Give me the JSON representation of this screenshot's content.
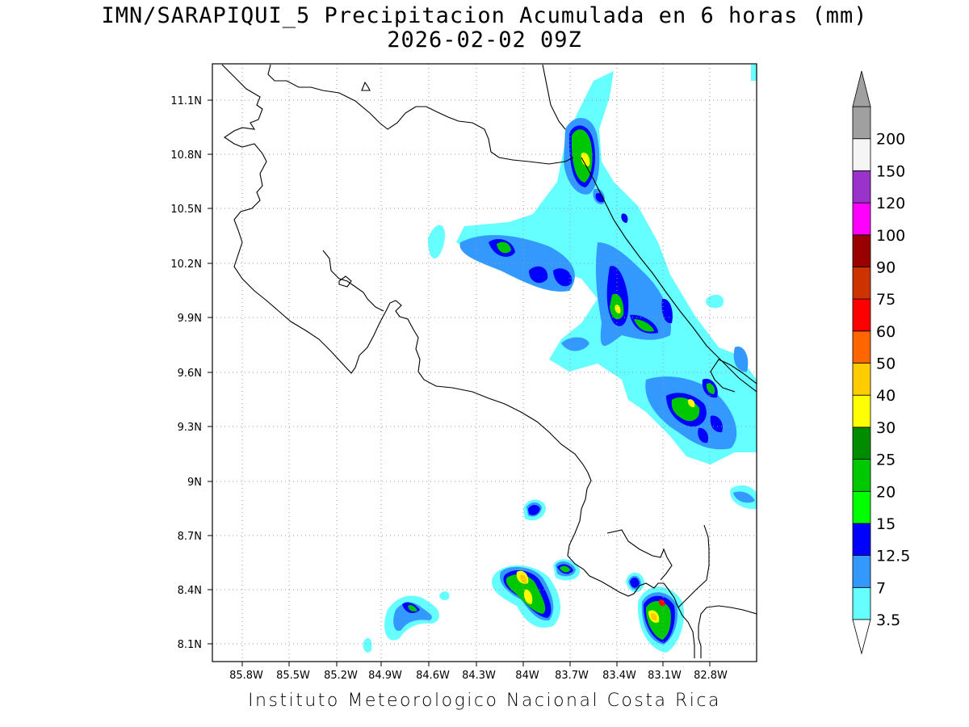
{
  "header": {
    "title": "IMN/SARAPIQUI_5 Precipitacion Acumulada en 6 horas (mm)",
    "subtitle": "2026-02-02 09Z"
  },
  "footer": "Instituto Meteorologico Nacional Costa Rica",
  "map": {
    "lon_range": [
      -86.0,
      -82.6
    ],
    "lat_range": [
      8.0,
      11.3
    ],
    "lon_ticks": [
      "85.8W",
      "85.5W",
      "85.2W",
      "84.9W",
      "84.6W",
      "84.3W",
      "84W",
      "83.7W",
      "83.4W",
      "83.1W",
      "82.8W"
    ],
    "lat_ticks": [
      "11.1N",
      "10.8N",
      "10.5N",
      "10.2N",
      "9.9N",
      "9.6N",
      "9.3N",
      "9N",
      "8.7N",
      "8.4N",
      "8.1N"
    ],
    "grid": "dotted"
  },
  "colorbar": {
    "labels": [
      "3.5",
      "7",
      "12.5",
      "15",
      "20",
      "25",
      "30",
      "40",
      "50",
      "60",
      "75",
      "90",
      "100",
      "120",
      "150",
      "200"
    ],
    "colors": [
      "#66ffff",
      "#3399ff",
      "#0000ff",
      "#00ff00",
      "#00c800",
      "#008c00",
      "#ffff00",
      "#ffcc00",
      "#ff6600",
      "#ff0000",
      "#cc3300",
      "#990000",
      "#ff00ff",
      "#9933cc",
      "#f5f5f5",
      "#a0a0a0"
    ]
  }
}
